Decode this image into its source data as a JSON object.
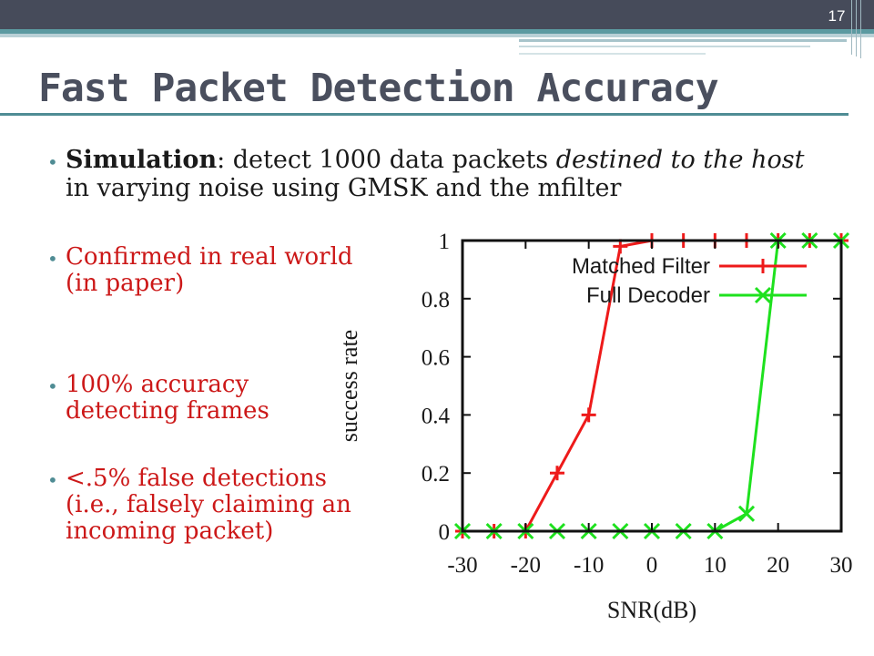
{
  "slide": {
    "page_number": "17",
    "title": "Fast Packet Detection Accuracy"
  },
  "bullets": {
    "main": {
      "bold": "Simulation",
      "text1": ": detect 1000 data packets ",
      "italic": "destined to the host",
      "text2": " in varying noise using GMSK and the mfilter"
    },
    "red": [
      "Confirmed in real world (in paper)",
      "100% accuracy detecting frames",
      "<.5% false detections (i.e., falsely claiming an incoming packet)"
    ]
  },
  "colors": {
    "matched_filter": "#ee1a1a",
    "full_decoder": "#1ee11e",
    "bullet_text": "#cc1818",
    "accent": "#4f8c94"
  },
  "chart_data": {
    "type": "line",
    "title": "",
    "xlabel": "SNR(dB)",
    "ylabel": "success rate",
    "xlim": [
      -30,
      30
    ],
    "ylim": [
      0,
      1
    ],
    "xticks": [
      -30,
      -20,
      -10,
      0,
      10,
      20,
      30
    ],
    "yticks": [
      0,
      0.2,
      0.4,
      0.6,
      0.8,
      1
    ],
    "legend_position": "top-right",
    "grid": false,
    "series": [
      {
        "name": "Matched Filter",
        "marker": "+",
        "color": "#ee1a1a",
        "x": [
          -30,
          -25,
          -20,
          -15,
          -10,
          -5,
          0,
          5,
          10,
          15,
          20,
          25,
          30
        ],
        "y": [
          0,
          0,
          0,
          0.2,
          0.4,
          0.98,
          1,
          1,
          1,
          1,
          1,
          1,
          1
        ]
      },
      {
        "name": "Full Decoder",
        "marker": "x",
        "color": "#1ee11e",
        "x": [
          -30,
          -25,
          -20,
          -15,
          -10,
          -5,
          0,
          5,
          10,
          15,
          20,
          25,
          30
        ],
        "y": [
          0,
          0,
          0,
          0,
          0,
          0,
          0,
          0,
          0,
          0.06,
          1,
          1,
          1
        ]
      }
    ]
  }
}
